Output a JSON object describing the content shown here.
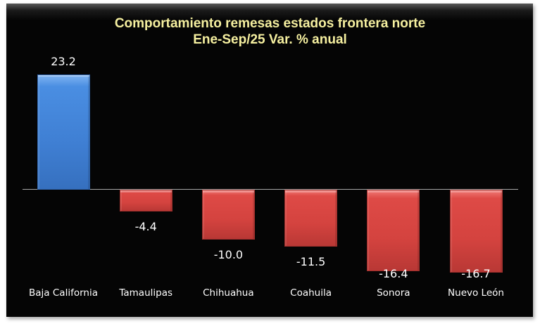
{
  "chart_data": {
    "type": "bar",
    "title": "Comportamiento remesas estados frontera norte",
    "subtitle": "Ene-Sep/25 Var. % anual",
    "categories": [
      "Baja California",
      "Tamaulipas",
      "Chihuahua",
      "Coahuila",
      "Sonora",
      "Nuevo León"
    ],
    "values": [
      23.2,
      -4.4,
      -10.0,
      -11.5,
      -16.4,
      -16.7
    ],
    "value_labels": [
      "23.2",
      "-4.4",
      "-10.0",
      "-11.5",
      "-16.4",
      "-16.7"
    ],
    "xlabel": "",
    "ylabel": "",
    "ylim": [
      -20,
      25
    ],
    "grid": false,
    "legend": null,
    "colors": {
      "positive": "#4a8ee2",
      "negative": "#d4433f",
      "background": "#050505",
      "title": "#f6f0a0",
      "labels": "#ffffff"
    }
  }
}
